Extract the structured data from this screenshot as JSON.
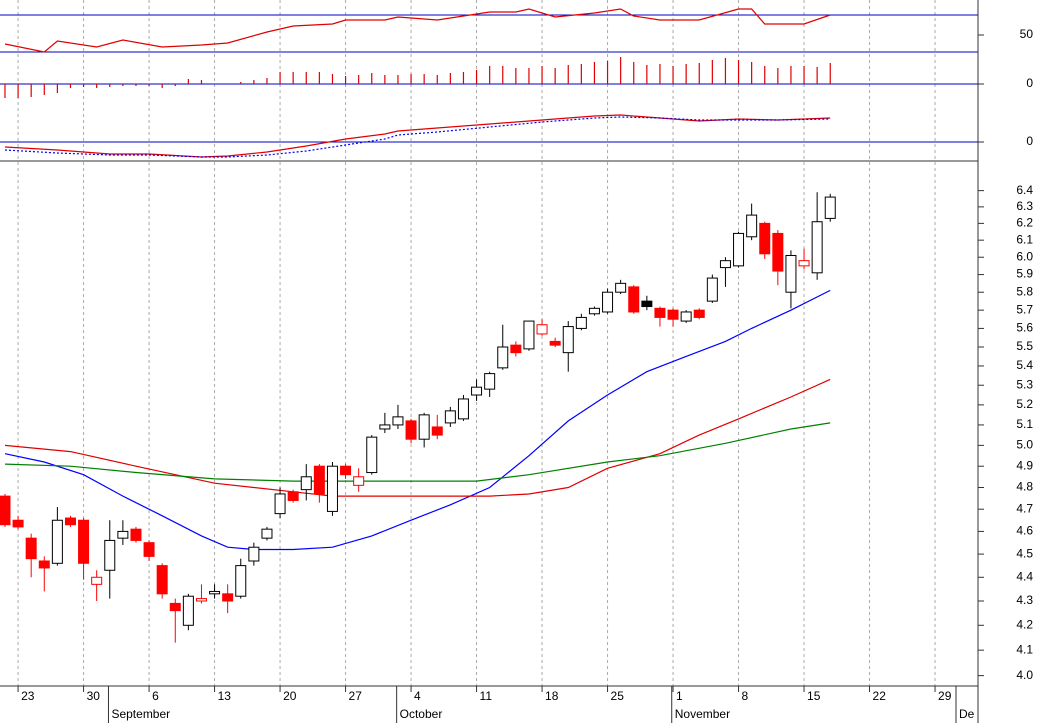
{
  "chart_data": [
    {
      "type": "candlestick",
      "log_scale": true,
      "xlim": [
        -0.38,
        74.28
      ],
      "ylim": [
        3.96,
        6.58
      ],
      "yticks": [
        {
          "value": 4.0,
          "label": "4.0"
        },
        4.1,
        4.2,
        4.3,
        4.4,
        4.5,
        4.6,
        4.7,
        4.8,
        4.9,
        {
          "value": 5.0,
          "label": "5.0"
        },
        5.1,
        5.2,
        5.3,
        5.4,
        5.5,
        5.6,
        5.7,
        5.8,
        5.9,
        {
          "value": 6.0,
          "label": "6.0"
        },
        6.1,
        6.2,
        6.3,
        6.4
      ],
      "xticks": [
        {
          "value": 1,
          "label": "23"
        },
        {
          "value": 6,
          "label": "30"
        },
        {
          "value": 11,
          "label": "6"
        },
        {
          "value": 16,
          "label": "13"
        },
        {
          "value": 21,
          "label": "20"
        },
        {
          "value": 26,
          "label": "27"
        },
        {
          "value": 31,
          "label": "4"
        },
        {
          "value": 36,
          "label": "11"
        },
        {
          "value": 41,
          "label": "18"
        },
        {
          "value": 46,
          "label": "25"
        },
        {
          "value": 51,
          "label": "1"
        },
        {
          "value": 56,
          "label": "8"
        },
        {
          "value": 61,
          "label": "15"
        },
        {
          "value": 66,
          "label": "22"
        },
        {
          "value": 71,
          "label": "29"
        }
      ],
      "month_ticks": [
        {
          "value": 7.9,
          "label": "September"
        },
        {
          "value": 29.9,
          "label": "October"
        },
        {
          "value": 50.9,
          "label": "November"
        },
        {
          "value": 72.6,
          "label": "De"
        }
      ],
      "up_color": "#000000",
      "down_color": "#ff0000",
      "x": [
        0,
        1,
        2,
        3,
        4,
        5,
        6,
        7,
        8,
        9,
        10,
        11,
        12,
        13,
        14,
        15,
        16,
        17,
        18,
        19,
        20,
        21,
        22,
        23,
        24,
        25,
        26,
        27,
        28,
        29,
        30,
        31,
        32,
        33,
        34,
        35,
        36,
        37,
        38,
        39,
        40,
        41,
        42,
        43,
        44,
        45,
        46,
        47,
        48,
        49,
        50,
        51,
        52,
        53,
        54,
        55,
        56,
        57,
        58,
        59,
        60,
        61,
        62,
        63
      ],
      "open": [
        4.76,
        4.65,
        4.57,
        4.47,
        4.46,
        4.66,
        4.65,
        4.37,
        4.43,
        4.57,
        4.61,
        4.55,
        4.45,
        4.29,
        4.2,
        4.3,
        4.33,
        4.33,
        4.32,
        4.47,
        4.57,
        4.68,
        4.78,
        4.79,
        4.9,
        4.69,
        4.9,
        4.81,
        4.87,
        5.08,
        5.1,
        5.12,
        5.03,
        5.09,
        5.11,
        5.13,
        5.25,
        5.28,
        5.39,
        5.51,
        5.49,
        5.57,
        5.53,
        5.47,
        5.6,
        5.68,
        5.69,
        5.8,
        5.83,
        5.75,
        5.71,
        5.7,
        5.64,
        5.7,
        5.75,
        5.94,
        5.95,
        6.12,
        6.2,
        6.14,
        5.8,
        5.95,
        5.91,
        6.23
      ],
      "high": [
        4.77,
        4.67,
        4.59,
        4.49,
        4.71,
        4.67,
        4.66,
        4.43,
        4.65,
        4.65,
        4.62,
        4.56,
        4.46,
        4.31,
        4.33,
        4.37,
        4.37,
        4.37,
        4.48,
        4.55,
        4.62,
        4.8,
        4.79,
        4.91,
        4.91,
        4.92,
        4.91,
        4.89,
        5.05,
        5.16,
        5.2,
        5.13,
        5.16,
        5.15,
        5.19,
        5.25,
        5.33,
        5.37,
        5.62,
        5.53,
        5.64,
        5.65,
        5.55,
        5.64,
        5.68,
        5.72,
        5.82,
        5.87,
        5.84,
        5.78,
        5.72,
        5.71,
        5.7,
        5.71,
        5.9,
        6.0,
        6.15,
        6.32,
        6.21,
        6.16,
        6.04,
        6.05,
        6.39,
        6.38
      ],
      "low": [
        4.62,
        4.61,
        4.4,
        4.34,
        4.45,
        4.62,
        4.39,
        4.3,
        4.31,
        4.54,
        4.55,
        4.47,
        4.31,
        4.13,
        4.18,
        4.29,
        4.31,
        4.25,
        4.31,
        4.45,
        4.56,
        4.66,
        4.73,
        4.74,
        4.73,
        4.67,
        4.84,
        4.78,
        4.86,
        5.06,
        5.08,
        5.01,
        4.99,
        5.03,
        5.09,
        5.12,
        5.22,
        5.24,
        5.38,
        5.45,
        5.48,
        5.56,
        5.5,
        5.37,
        5.59,
        5.67,
        5.68,
        5.79,
        5.68,
        5.7,
        5.61,
        5.61,
        5.63,
        5.65,
        5.74,
        5.83,
        5.94,
        6.1,
        5.99,
        5.84,
        5.71,
        5.93,
        5.87,
        6.21
      ],
      "close": [
        4.63,
        4.62,
        4.48,
        4.44,
        4.65,
        4.63,
        4.46,
        4.4,
        4.56,
        4.6,
        4.56,
        4.49,
        4.33,
        4.26,
        4.32,
        4.31,
        4.34,
        4.3,
        4.45,
        4.53,
        4.61,
        4.77,
        4.74,
        4.85,
        4.77,
        4.9,
        4.86,
        4.85,
        5.04,
        5.1,
        5.14,
        5.03,
        5.15,
        5.05,
        5.17,
        5.23,
        5.29,
        5.36,
        5.5,
        5.47,
        5.64,
        5.62,
        5.51,
        5.61,
        5.66,
        5.71,
        5.8,
        5.85,
        5.69,
        5.72,
        5.66,
        5.65,
        5.69,
        5.66,
        5.88,
        5.98,
        6.14,
        6.25,
        6.02,
        5.92,
        6.01,
        5.98,
        6.21,
        6.36
      ],
      "series": [
        {
          "color": "#0000ff",
          "x": [
            0,
            3,
            6,
            9,
            12,
            15,
            17,
            19,
            22,
            25,
            28,
            31,
            34,
            37,
            40,
            43,
            46,
            49,
            52,
            55,
            57,
            60,
            63
          ],
          "values": [
            4.96,
            4.92,
            4.86,
            4.76,
            4.67,
            4.58,
            4.53,
            4.52,
            4.52,
            4.53,
            4.58,
            4.65,
            4.72,
            4.8,
            4.95,
            5.12,
            5.25,
            5.37,
            5.45,
            5.53,
            5.6,
            5.7,
            5.81
          ]
        },
        {
          "color": "#e00000",
          "x": [
            0,
            5,
            10,
            16,
            22,
            25,
            30,
            37,
            40,
            43,
            46,
            50,
            53,
            56,
            60,
            63
          ],
          "values": [
            5.0,
            4.97,
            4.9,
            4.82,
            4.78,
            4.76,
            4.76,
            4.76,
            4.77,
            4.8,
            4.89,
            4.96,
            5.05,
            5.13,
            5.24,
            5.33
          ]
        },
        {
          "color": "#008000",
          "x": [
            0,
            5,
            10,
            16,
            22,
            30,
            36,
            40,
            46,
            50,
            55,
            60,
            63
          ],
          "values": [
            4.91,
            4.9,
            4.87,
            4.84,
            4.83,
            4.83,
            4.83,
            4.86,
            4.92,
            4.95,
            5.01,
            5.08,
            5.11
          ]
        }
      ]
    },
    {
      "type": "line",
      "ylim": [
        33,
        85
      ],
      "yticks": [
        50
      ],
      "hlines": [
        70
      ],
      "series": [
        {
          "color": "#e00000",
          "x": [
            0,
            3,
            4,
            7,
            9,
            12,
            15,
            17,
            20,
            22,
            25,
            26,
            29,
            30,
            33,
            37,
            39,
            40,
            42,
            45,
            47,
            48,
            50,
            53,
            56,
            57,
            58,
            61,
            63
          ],
          "values": [
            41,
            33,
            44,
            38,
            45,
            38,
            40,
            42,
            53,
            59,
            61,
            65,
            65,
            68,
            65,
            73,
            73,
            76,
            68,
            72,
            76,
            69,
            65,
            65,
            76,
            76,
            61,
            61,
            70
          ]
        }
      ]
    },
    {
      "type": "bar",
      "ylim": [
        -0.038,
        0.064
      ],
      "yticks": [
        0
      ],
      "hlines": [
        0
      ],
      "color": "#e00000",
      "x": [
        0,
        1,
        2,
        3,
        4,
        5,
        6,
        7,
        8,
        9,
        10,
        11,
        12,
        13,
        14,
        15,
        16,
        17,
        18,
        19,
        20,
        21,
        22,
        23,
        24,
        25,
        26,
        27,
        28,
        29,
        30,
        31,
        32,
        33,
        34,
        35,
        36,
        37,
        38,
        39,
        40,
        41,
        42,
        43,
        44,
        45,
        46,
        47,
        48,
        49,
        50,
        51,
        52,
        53,
        54,
        55,
        56,
        57,
        58,
        59,
        60,
        61,
        62,
        63
      ],
      "values": [
        -0.028,
        -0.028,
        -0.026,
        -0.022,
        -0.018,
        -0.008,
        -0.006,
        -0.008,
        -0.006,
        -0.004,
        -0.004,
        -0.004,
        -0.008,
        -0.004,
        0.01,
        0.008,
        0,
        0,
        0.004,
        0.008,
        0.012,
        0.024,
        0.024,
        0.024,
        0.024,
        0.02,
        0.016,
        0.018,
        0.022,
        0.018,
        0.018,
        0.02,
        0.02,
        0.018,
        0.022,
        0.024,
        0.028,
        0.036,
        0.036,
        0.032,
        0.032,
        0.036,
        0.032,
        0.038,
        0.04,
        0.044,
        0.046,
        0.054,
        0.044,
        0.038,
        0.04,
        0.036,
        0.04,
        0.042,
        0.048,
        0.052,
        0.048,
        0.044,
        0.036,
        0.032,
        0.036,
        0.036,
        0.034,
        0.042
      ]
    },
    {
      "type": "line",
      "ylim": [
        -0.19,
        0.39
      ],
      "yticks": [
        0
      ],
      "hlines": [
        0
      ],
      "x": [
        0,
        4,
        8,
        11,
        15,
        17,
        20,
        23,
        26,
        29,
        30,
        33,
        37,
        41,
        45,
        47,
        50,
        53,
        56,
        59,
        63
      ],
      "series": [
        {
          "color": "#e00000",
          "values": [
            -0.05,
            -0.08,
            -0.12,
            -0.12,
            -0.15,
            -0.14,
            -0.1,
            -0.04,
            0.03,
            0.08,
            0.11,
            0.14,
            0.18,
            0.22,
            0.26,
            0.27,
            0.24,
            0.21,
            0.23,
            0.22,
            0.24
          ]
        },
        {
          "color": "#0000ff",
          "style": "dotted",
          "values": [
            -0.08,
            -0.11,
            -0.13,
            -0.13,
            -0.15,
            -0.15,
            -0.13,
            -0.09,
            -0.03,
            0.03,
            0.07,
            0.1,
            0.15,
            0.2,
            0.24,
            0.25,
            0.24,
            0.22,
            0.22,
            0.22,
            0.23
          ]
        }
      ]
    }
  ]
}
